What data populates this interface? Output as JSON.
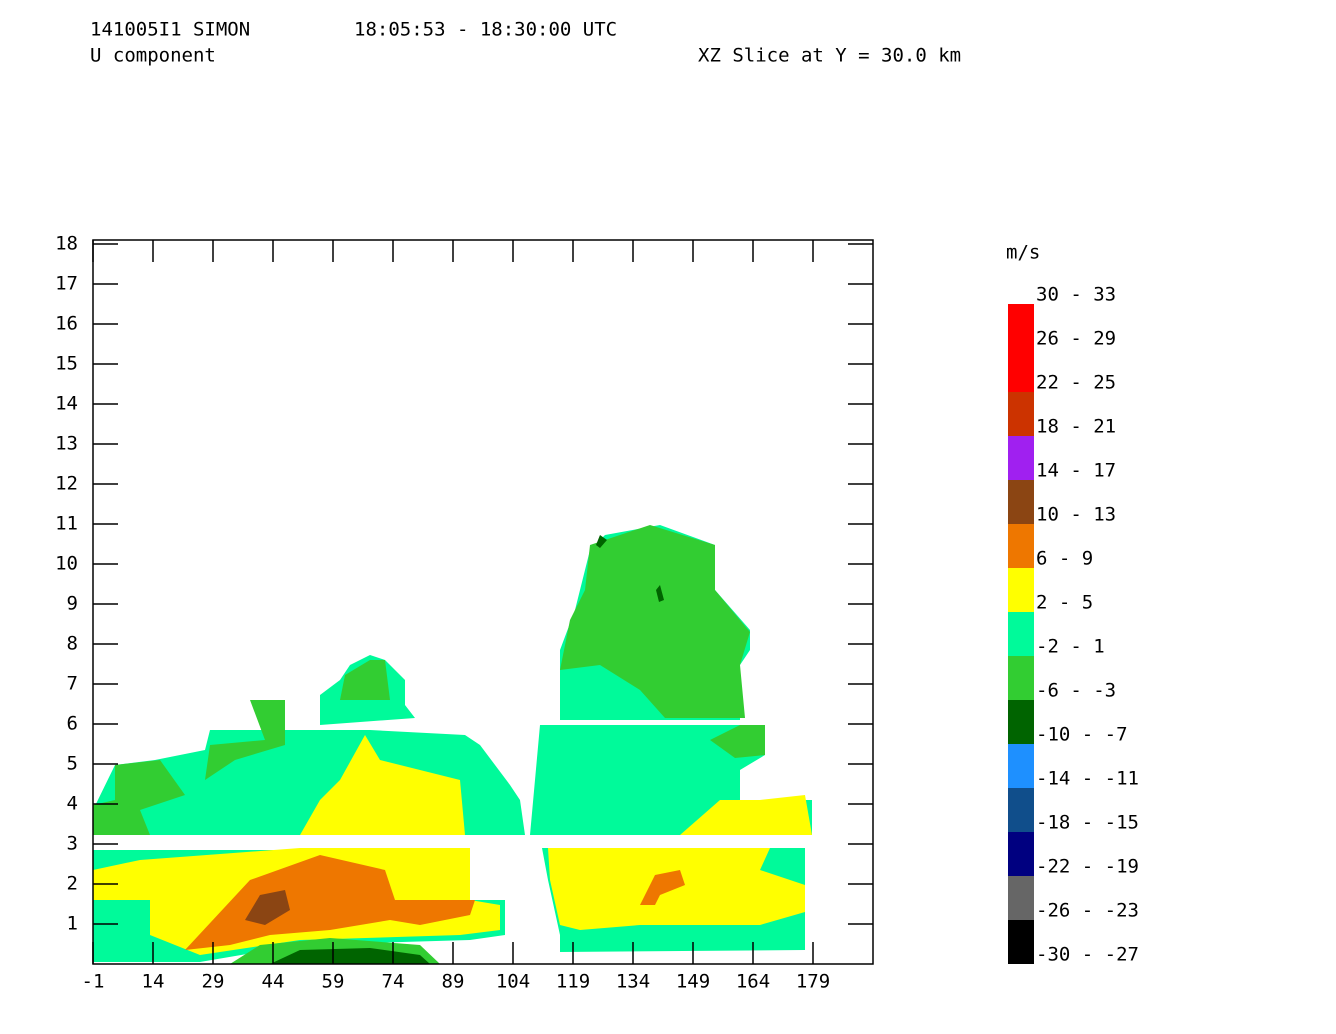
{
  "chart_data": {
    "type": "contour",
    "title": "141005I1 SIMON",
    "time_range": "18:05:53 - 18:30:00 UTC",
    "field": "U component",
    "slice": "XZ Slice at Y = 30.0 km",
    "legend_title": "m/s",
    "xlim": [
      -1,
      194
    ],
    "ylim": [
      0,
      18.1
    ],
    "xticks": [
      -1,
      14,
      29,
      44,
      59,
      74,
      89,
      104,
      119,
      134,
      149,
      164,
      179
    ],
    "yticks": [
      1,
      2,
      3,
      4,
      5,
      6,
      7,
      8,
      9,
      10,
      11,
      12,
      13,
      14,
      15,
      16,
      17,
      18
    ],
    "legend": [
      {
        "label": "30 - 33",
        "color": "#ff80c0"
      },
      {
        "label": "26 - 29",
        "color": "#ff0000"
      },
      {
        "label": "22 - 25",
        "color": "#ff0000"
      },
      {
        "label": "18 - 21",
        "color": "#cc3300"
      },
      {
        "label": "14 - 17",
        "color": "#a020f0"
      },
      {
        "label": "10 - 13",
        "color": "#8b4513"
      },
      {
        "label": "6 - 9",
        "color": "#ee7700"
      },
      {
        "label": "2 - 5",
        "color": "#ffff00"
      },
      {
        "label": "-2 - 1",
        "color": "#00fa9a"
      },
      {
        "label": "-6 - -3",
        "color": "#32cd32"
      },
      {
        "label": "-10 - -7",
        "color": "#006400"
      },
      {
        "label": "-14 - -11",
        "color": "#1e90ff"
      },
      {
        "label": "-18 - -15",
        "color": "#104e8b"
      },
      {
        "label": "-22 - -19",
        "color": "#000080"
      },
      {
        "label": "-26 - -23",
        "color": "#666666"
      },
      {
        "label": "-30 - -27",
        "color": "#000000"
      }
    ]
  }
}
